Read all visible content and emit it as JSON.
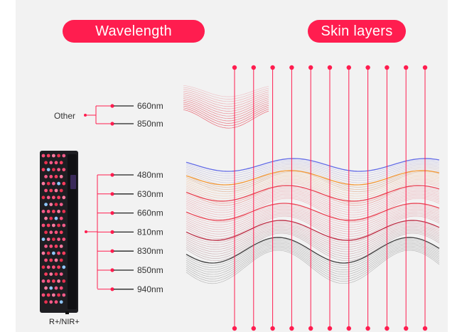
{
  "header": {
    "wavelength_label": "Wavelength",
    "skin_layers_label": "Skin layers"
  },
  "other_group": {
    "label": "Other",
    "items": [
      "660nm",
      "850nm"
    ]
  },
  "main_group": {
    "items": [
      "480nm",
      "630nm",
      "660nm",
      "810nm",
      "830nm",
      "850nm",
      "940nm"
    ]
  },
  "device": {
    "label": "R+/NIR+"
  },
  "colors": {
    "accent": "#ff1d4f",
    "blue_wave": "#5a63e6",
    "orange_wave": "#f5962a",
    "red_wave": "#e8394a",
    "dark_wave": "#333333",
    "panel": "#f2f2f2",
    "device_body": "#1e1e22"
  }
}
